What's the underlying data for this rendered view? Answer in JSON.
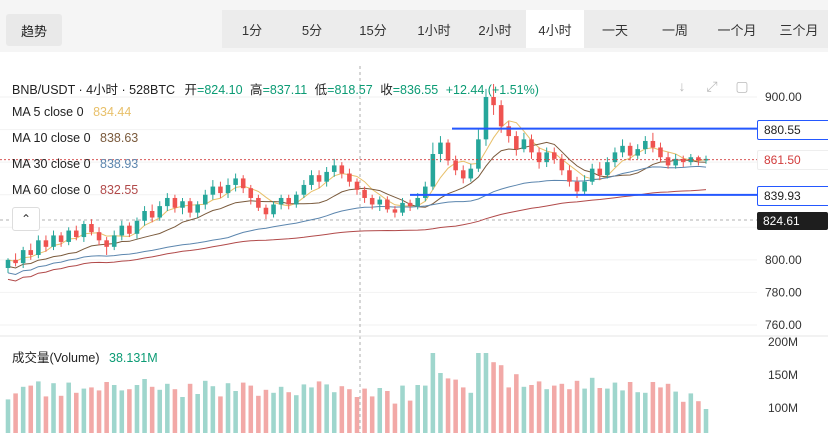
{
  "toolbar": {
    "trend_label": "趋势",
    "timeframes": [
      "1分",
      "5分",
      "15分",
      "1小时",
      "2小时",
      "4小时",
      "一天",
      "一周",
      "一个月",
      "三个月"
    ],
    "active": "4小时"
  },
  "header": {
    "symbol": "BNB/USDT · 4小时 · 528BTC",
    "open_label": "开",
    "open": "=824.10",
    "high_label": "高",
    "high": "=837.11",
    "low_label": "低",
    "low": "=818.57",
    "close_label": "收",
    "close": "=836.55",
    "change": "+12.44 (+1.51%)"
  },
  "ma": [
    {
      "label": "MA 5 close 0",
      "value": "834.44",
      "color": "#e8c06a"
    },
    {
      "label": "MA 10 close 0",
      "value": "838.63",
      "color": "#7a5a3c"
    },
    {
      "label": "MA 30 close 0",
      "value": "838.93",
      "color": "#5c86ae"
    },
    {
      "label": "MA 60 close 0",
      "value": "832.55",
      "color": "#b14a4a"
    }
  ],
  "price_tags": {
    "upper": "880.55",
    "current": "861.50",
    "lower": "839.93",
    "cursor": "824.61"
  },
  "volume": {
    "label": "成交量(Volume)",
    "value": "38.131M"
  },
  "colors": {
    "up": "#26a69a",
    "down": "#ef5350",
    "level": "#2458ff",
    "accent": "#0b9b74"
  },
  "chart_data": {
    "type": "candlestick",
    "y_ticks": [
      "900.00",
      "800.00",
      "780.00",
      "760.00"
    ],
    "volume_ticks": [
      "200M",
      "150M",
      "100M"
    ],
    "levels": [
      880.55,
      839.93
    ],
    "current_price": 861.5,
    "candles": [
      [
        795,
        800,
        792,
        801
      ],
      [
        800,
        798,
        796,
        804
      ],
      [
        798,
        806,
        795,
        808
      ],
      [
        806,
        803,
        800,
        810
      ],
      [
        803,
        812,
        801,
        815
      ],
      [
        812,
        808,
        805,
        815
      ],
      [
        808,
        815,
        806,
        818
      ],
      [
        815,
        811,
        808,
        817
      ],
      [
        811,
        818,
        809,
        820
      ],
      [
        818,
        814,
        812,
        821
      ],
      [
        814,
        822,
        811,
        824
      ],
      [
        822,
        817,
        815,
        825
      ],
      [
        817,
        812,
        809,
        820
      ],
      [
        812,
        808,
        803,
        814
      ],
      [
        808,
        815,
        806,
        818
      ],
      [
        815,
        821,
        812,
        824
      ],
      [
        821,
        816,
        814,
        823
      ],
      [
        816,
        824,
        813,
        826
      ],
      [
        824,
        830,
        821,
        833
      ],
      [
        830,
        826,
        823,
        834
      ],
      [
        826,
        833,
        824,
        836
      ],
      [
        833,
        838,
        830,
        841
      ],
      [
        838,
        832,
        829,
        840
      ],
      [
        832,
        836,
        828,
        838
      ],
      [
        836,
        829,
        826,
        838
      ],
      [
        829,
        834,
        826,
        836
      ],
      [
        834,
        840,
        831,
        843
      ],
      [
        840,
        845,
        837,
        849
      ],
      [
        845,
        841,
        838,
        848
      ],
      [
        841,
        846,
        838,
        850
      ],
      [
        846,
        850,
        842,
        853
      ],
      [
        850,
        844,
        841,
        852
      ],
      [
        844,
        838,
        834,
        846
      ],
      [
        838,
        832,
        830,
        840
      ],
      [
        832,
        828,
        825,
        834
      ],
      [
        828,
        834,
        826,
        836
      ],
      [
        834,
        838,
        831,
        840
      ],
      [
        838,
        834,
        831,
        840
      ],
      [
        834,
        840,
        832,
        842
      ],
      [
        840,
        846,
        838,
        849
      ],
      [
        846,
        852,
        843,
        855
      ],
      [
        852,
        848,
        844,
        855
      ],
      [
        848,
        854,
        845,
        857
      ],
      [
        854,
        858,
        851,
        862
      ],
      [
        858,
        853,
        850,
        860
      ],
      [
        853,
        848,
        845,
        856
      ],
      [
        848,
        843,
        840,
        850
      ],
      [
        843,
        838,
        835,
        845
      ],
      [
        838,
        834,
        831,
        840
      ],
      [
        834,
        837,
        830,
        839
      ],
      [
        837,
        831,
        829,
        839
      ],
      [
        831,
        829,
        826,
        833
      ],
      [
        829,
        835,
        827,
        838
      ],
      [
        835,
        833,
        830,
        837
      ],
      [
        833,
        838,
        831,
        841
      ],
      [
        838,
        845,
        836,
        848
      ],
      [
        845,
        865,
        843,
        872
      ],
      [
        865,
        872,
        860,
        876
      ],
      [
        872,
        861,
        858,
        874
      ],
      [
        861,
        855,
        852,
        864
      ],
      [
        855,
        850,
        847,
        858
      ],
      [
        850,
        856,
        848,
        859
      ],
      [
        856,
        874,
        854,
        880
      ],
      [
        874,
        900,
        870,
        905
      ],
      [
        900,
        895,
        889,
        908
      ],
      [
        895,
        882,
        878,
        898
      ],
      [
        882,
        876,
        872,
        885
      ],
      [
        876,
        868,
        864,
        879
      ],
      [
        868,
        874,
        866,
        878
      ],
      [
        874,
        866,
        862,
        877
      ],
      [
        866,
        860,
        856,
        869
      ],
      [
        860,
        866,
        857,
        869
      ],
      [
        866,
        862,
        859,
        869
      ],
      [
        862,
        855,
        852,
        865
      ],
      [
        855,
        848,
        845,
        858
      ],
      [
        848,
        842,
        838,
        851
      ],
      [
        842,
        848,
        840,
        852
      ],
      [
        848,
        856,
        846,
        859
      ],
      [
        856,
        852,
        849,
        860
      ],
      [
        852,
        860,
        850,
        863
      ],
      [
        860,
        866,
        857,
        869
      ],
      [
        866,
        870,
        863,
        874
      ],
      [
        870,
        864,
        861,
        872
      ],
      [
        864,
        868,
        862,
        871
      ],
      [
        868,
        873,
        865,
        876
      ],
      [
        873,
        869,
        866,
        878
      ],
      [
        869,
        863,
        860,
        872
      ],
      [
        863,
        858,
        856,
        866
      ],
      [
        858,
        862,
        856,
        865
      ],
      [
        862,
        860,
        857,
        864
      ],
      [
        860,
        863,
        858,
        865
      ],
      [
        863,
        861,
        858,
        864
      ],
      [
        861,
        862,
        859,
        864
      ]
    ]
  }
}
